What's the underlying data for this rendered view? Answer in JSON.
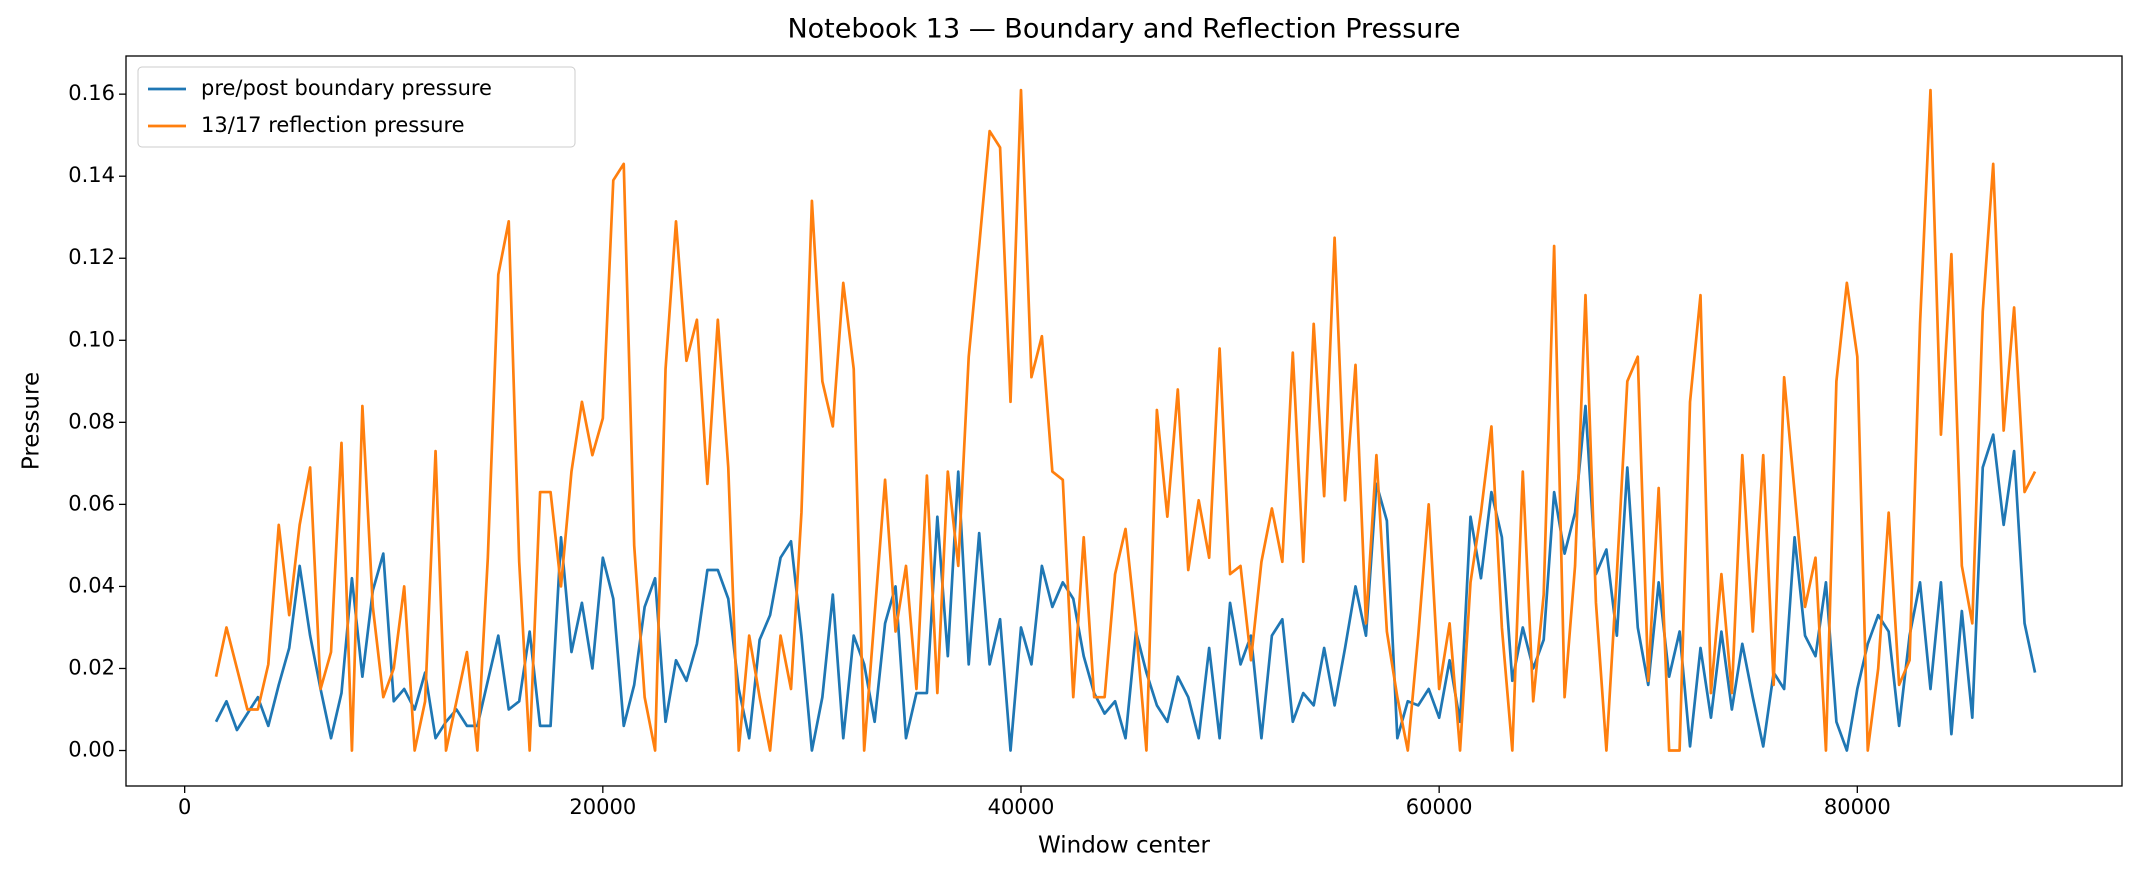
{
  "chart_data": {
    "type": "line",
    "title": "Notebook 13 — Boundary and Reflection Pressure",
    "x_label": "Window center",
    "y_label": "Pressure",
    "legend": "upper left",
    "grid": false,
    "xlim": [
      -2806,
      92660
    ],
    "ylim": [
      -0.00865,
      0.1693
    ],
    "xticks": [
      0,
      20000,
      40000,
      60000,
      80000
    ],
    "yticks": [
      {
        "value": 0,
        "label": "0.00"
      },
      0.02,
      0.04,
      0.06,
      0.08,
      {
        "value": 0.1,
        "label": "0.10"
      },
      0.12,
      0.14,
      0.16
    ],
    "x": [
      1500,
      2000,
      2500,
      3000,
      3500,
      4000,
      4500,
      5000,
      5500,
      6000,
      6500,
      7000,
      7500,
      8000,
      8500,
      9000,
      9500,
      10000,
      10500,
      11000,
      11500,
      12000,
      12500,
      13000,
      13500,
      14000,
      14500,
      15000,
      15500,
      16000,
      16500,
      17000,
      17500,
      18000,
      18500,
      19000,
      19500,
      20000,
      20500,
      21000,
      21500,
      22000,
      22500,
      23000,
      23500,
      24000,
      24500,
      25000,
      25500,
      26000,
      26500,
      27000,
      27500,
      28000,
      28500,
      29000,
      29500,
      30000,
      30500,
      31000,
      31500,
      32000,
      32500,
      33000,
      33500,
      34000,
      34500,
      35000,
      35500,
      36000,
      36500,
      37000,
      37500,
      38000,
      38500,
      39000,
      39500,
      40000,
      40500,
      41000,
      41500,
      42000,
      42500,
      43000,
      43500,
      44000,
      44500,
      45000,
      45500,
      46000,
      46500,
      47000,
      47500,
      48000,
      48500,
      49000,
      49500,
      50000,
      50500,
      51000,
      51500,
      52000,
      52500,
      53000,
      53500,
      54000,
      54500,
      55000,
      55500,
      56000,
      56500,
      57000,
      57500,
      58000,
      58500,
      59000,
      59500,
      60000,
      60500,
      61000,
      61500,
      62000,
      62500,
      63000,
      63500,
      64000,
      64500,
      65000,
      65500,
      66000,
      66500,
      67000,
      67500,
      68000,
      68500,
      69000,
      69500,
      70000,
      70500,
      71000,
      71500,
      72000,
      72500,
      73000,
      73500,
      74000,
      74500,
      75000,
      75500,
      76000,
      76500,
      77000,
      77500,
      78000,
      78500,
      79000,
      79500,
      80000,
      80500,
      81000,
      81500,
      82000,
      82500,
      83000,
      83500,
      84000,
      84500,
      85000,
      85500,
      86000,
      86500,
      87000,
      87500,
      88000,
      88500
    ],
    "series": [
      {
        "name": "pre/post boundary pressure",
        "color": "#1f77b4",
        "values": [
          0.007,
          0.012,
          0.005,
          0.009,
          0.013,
          0.006,
          0.016,
          0.025,
          0.045,
          0.028,
          0.015,
          0.003,
          0.014,
          0.042,
          0.018,
          0.039,
          0.048,
          0.012,
          0.015,
          0.01,
          0.019,
          0.003,
          0.007,
          0.01,
          0.006,
          0.006,
          0.017,
          0.028,
          0.01,
          0.012,
          0.029,
          0.006,
          0.006,
          0.052,
          0.024,
          0.036,
          0.02,
          0.047,
          0.037,
          0.006,
          0.016,
          0.035,
          0.042,
          0.007,
          0.022,
          0.017,
          0.026,
          0.044,
          0.044,
          0.037,
          0.015,
          0.003,
          0.027,
          0.033,
          0.047,
          0.051,
          0.028,
          0.0,
          0.013,
          0.038,
          0.003,
          0.028,
          0.021,
          0.007,
          0.031,
          0.04,
          0.003,
          0.014,
          0.014,
          0.057,
          0.023,
          0.068,
          0.021,
          0.053,
          0.021,
          0.032,
          0.0,
          0.03,
          0.021,
          0.045,
          0.035,
          0.041,
          0.037,
          0.023,
          0.014,
          0.009,
          0.012,
          0.003,
          0.029,
          0.019,
          0.011,
          0.007,
          0.018,
          0.013,
          0.003,
          0.025,
          0.003,
          0.036,
          0.021,
          0.028,
          0.003,
          0.028,
          0.032,
          0.007,
          0.014,
          0.011,
          0.025,
          0.011,
          0.025,
          0.04,
          0.028,
          0.065,
          0.056,
          0.003,
          0.012,
          0.011,
          0.015,
          0.008,
          0.022,
          0.007,
          0.057,
          0.042,
          0.063,
          0.052,
          0.017,
          0.03,
          0.02,
          0.027,
          0.063,
          0.048,
          0.058,
          0.084,
          0.043,
          0.049,
          0.028,
          0.069,
          0.03,
          0.016,
          0.041,
          0.018,
          0.029,
          0.001,
          0.025,
          0.008,
          0.029,
          0.01,
          0.026,
          0.013,
          0.001,
          0.019,
          0.015,
          0.052,
          0.028,
          0.023,
          0.041,
          0.007,
          0.0,
          0.015,
          0.026,
          0.033,
          0.029,
          0.006,
          0.028,
          0.041,
          0.015,
          0.041,
          0.004,
          0.034,
          0.008,
          0.069,
          0.077,
          0.055,
          0.073,
          0.031,
          0.019
        ]
      },
      {
        "name": "13/17 reflection pressure",
        "color": "#ff7f0e",
        "values": [
          0.018,
          0.03,
          0.02,
          0.01,
          0.01,
          0.021,
          0.055,
          0.033,
          0.055,
          0.069,
          0.015,
          0.024,
          0.075,
          0.0,
          0.084,
          0.035,
          0.013,
          0.02,
          0.04,
          0.0,
          0.012,
          0.073,
          0.0,
          0.012,
          0.024,
          0.0,
          0.047,
          0.116,
          0.129,
          0.046,
          0.0,
          0.063,
          0.063,
          0.04,
          0.068,
          0.085,
          0.072,
          0.081,
          0.139,
          0.143,
          0.05,
          0.013,
          0.0,
          0.093,
          0.129,
          0.095,
          0.105,
          0.065,
          0.105,
          0.069,
          0.0,
          0.028,
          0.013,
          0.0,
          0.028,
          0.015,
          0.058,
          0.134,
          0.09,
          0.079,
          0.114,
          0.093,
          0.0,
          0.033,
          0.066,
          0.029,
          0.045,
          0.015,
          0.067,
          0.014,
          0.068,
          0.045,
          0.096,
          0.123,
          0.151,
          0.147,
          0.085,
          0.161,
          0.091,
          0.101,
          0.068,
          0.066,
          0.013,
          0.052,
          0.013,
          0.013,
          0.043,
          0.054,
          0.03,
          0.0,
          0.083,
          0.057,
          0.088,
          0.044,
          0.061,
          0.047,
          0.098,
          0.043,
          0.045,
          0.022,
          0.046,
          0.059,
          0.046,
          0.097,
          0.046,
          0.104,
          0.062,
          0.125,
          0.061,
          0.094,
          0.031,
          0.072,
          0.029,
          0.013,
          0.0,
          0.028,
          0.06,
          0.015,
          0.031,
          0.0,
          0.041,
          0.058,
          0.079,
          0.03,
          0.0,
          0.068,
          0.012,
          0.038,
          0.123,
          0.013,
          0.045,
          0.111,
          0.036,
          0.0,
          0.043,
          0.09,
          0.096,
          0.017,
          0.064,
          0.0,
          0.0,
          0.085,
          0.111,
          0.014,
          0.043,
          0.014,
          0.072,
          0.029,
          0.072,
          0.016,
          0.091,
          0.063,
          0.035,
          0.047,
          0.0,
          0.09,
          0.114,
          0.096,
          0.0,
          0.02,
          0.058,
          0.016,
          0.022,
          0.104,
          0.161,
          0.077,
          0.121,
          0.045,
          0.031,
          0.107,
          0.143,
          0.078,
          0.108,
          0.063,
          0.068
        ]
      }
    ]
  }
}
